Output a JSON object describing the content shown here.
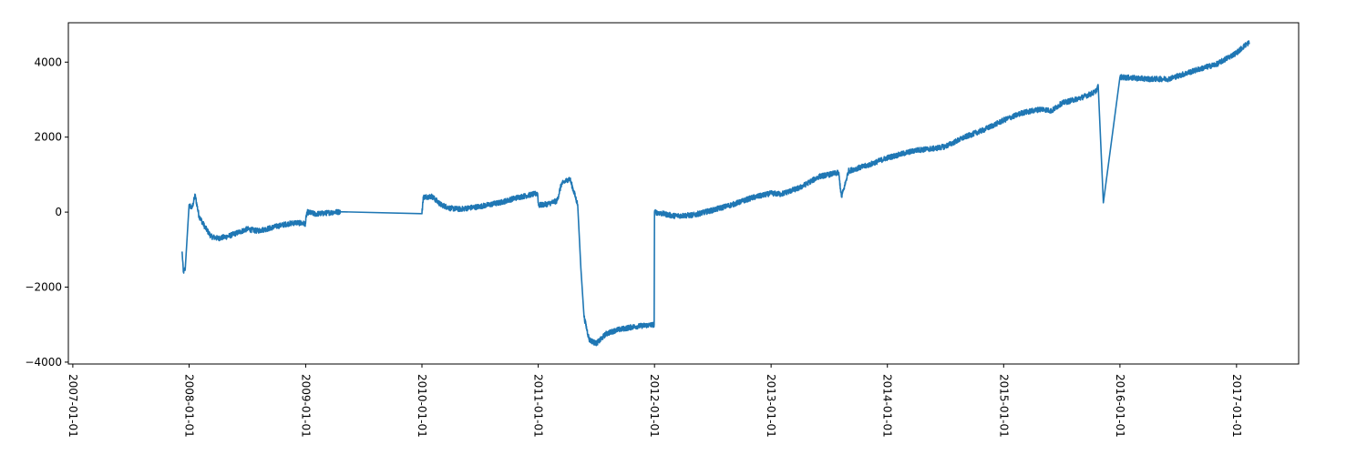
{
  "chart_data": {
    "type": "line",
    "title": "",
    "xlabel": "",
    "ylabel": "",
    "x_axis": {
      "kind": "date",
      "range": [
        "2006-12-18",
        "2017-07-15"
      ],
      "ticks": [
        "2007-01-01",
        "2008-01-01",
        "2009-01-01",
        "2010-01-01",
        "2011-01-01",
        "2012-01-01",
        "2013-01-01",
        "2014-01-01",
        "2015-01-01",
        "2016-01-01",
        "2017-01-01"
      ],
      "tick_labels": [
        "2007-01-01",
        "2008-01-01",
        "2009-01-01",
        "2010-01-01",
        "2011-01-01",
        "2012-01-01",
        "2013-01-01",
        "2014-01-01",
        "2015-01-01",
        "2016-01-01",
        "2017-01-01"
      ]
    },
    "y_axis": {
      "range": [
        -4050,
        5050
      ],
      "ticks": [
        -4000,
        -2000,
        0,
        2000,
        4000
      ],
      "tick_labels": [
        "−4000",
        "−2000",
        "0",
        "2000",
        "4000"
      ]
    },
    "grid": false,
    "legend": "none",
    "colors": {
      "line": "#1f77b4",
      "axes": "#000000",
      "background": "#ffffff"
    },
    "series": [
      {
        "color": "#1f77b4",
        "noise": 70,
        "points": [
          [
            "2007-12-10",
            -1050
          ],
          [
            "2007-12-14",
            -1600
          ],
          [
            "2007-12-20",
            -1500
          ],
          [
            "2008-01-01",
            200
          ],
          [
            "2008-01-10",
            100
          ],
          [
            "2008-01-20",
            450
          ],
          [
            "2008-02-01",
            -100
          ],
          [
            "2008-02-20",
            -400
          ],
          [
            "2008-03-10",
            -650
          ],
          [
            "2008-04-01",
            -700
          ],
          [
            "2008-05-01",
            -650
          ],
          [
            "2008-06-01",
            -550
          ],
          [
            "2008-07-01",
            -450
          ],
          [
            "2008-08-01",
            -500
          ],
          [
            "2008-09-01",
            -450
          ],
          [
            "2008-10-01",
            -380
          ],
          [
            "2008-11-01",
            -320
          ],
          [
            "2008-12-01",
            -280
          ],
          [
            "2008-12-31",
            -310
          ],
          [
            "2009-01-05",
            0
          ],
          [
            "2009-02-01",
            -50
          ],
          [
            "2009-03-01",
            -30
          ],
          [
            "2009-04-01",
            0
          ],
          [
            "2009-04-20",
            10
          ],
          [
            "2010-01-01",
            -40
          ],
          [
            "2010-01-05",
            400
          ],
          [
            "2010-02-01",
            420
          ],
          [
            "2010-03-01",
            200
          ],
          [
            "2010-04-01",
            100
          ],
          [
            "2010-05-01",
            80
          ],
          [
            "2010-07-01",
            150
          ],
          [
            "2010-09-01",
            250
          ],
          [
            "2010-11-01",
            400
          ],
          [
            "2010-12-30",
            500
          ],
          [
            "2011-01-02",
            180
          ],
          [
            "2011-02-01",
            220
          ],
          [
            "2011-03-01",
            300
          ],
          [
            "2011-03-15",
            750
          ],
          [
            "2011-04-01",
            850
          ],
          [
            "2011-04-10",
            900
          ],
          [
            "2011-05-05",
            200
          ],
          [
            "2011-05-15",
            -1500
          ],
          [
            "2011-05-25",
            -2800
          ],
          [
            "2011-06-10",
            -3400
          ],
          [
            "2011-07-01",
            -3500
          ],
          [
            "2011-07-10",
            -3450
          ],
          [
            "2011-08-01",
            -3250
          ],
          [
            "2011-09-01",
            -3150
          ],
          [
            "2011-10-01",
            -3100
          ],
          [
            "2011-11-01",
            -3050
          ],
          [
            "2011-12-31",
            -3000
          ],
          [
            "2012-01-01",
            0
          ],
          [
            "2012-02-01",
            -50
          ],
          [
            "2012-03-01",
            -100
          ],
          [
            "2012-05-01",
            -80
          ],
          [
            "2012-07-01",
            50
          ],
          [
            "2012-09-01",
            200
          ],
          [
            "2012-11-01",
            380
          ],
          [
            "2013-01-01",
            500
          ],
          [
            "2013-02-01",
            480
          ],
          [
            "2013-04-01",
            650
          ],
          [
            "2013-06-01",
            950
          ],
          [
            "2013-07-01",
            1000
          ],
          [
            "2013-08-01",
            1050
          ],
          [
            "2013-08-10",
            400
          ],
          [
            "2013-08-20",
            700
          ],
          [
            "2013-09-01",
            1100
          ],
          [
            "2013-11-01",
            1250
          ],
          [
            "2014-01-01",
            1450
          ],
          [
            "2014-04-01",
            1650
          ],
          [
            "2014-06-01",
            1700
          ],
          [
            "2014-07-01",
            1750
          ],
          [
            "2014-09-01",
            2000
          ],
          [
            "2014-11-01",
            2200
          ],
          [
            "2015-01-01",
            2450
          ],
          [
            "2015-03-01",
            2650
          ],
          [
            "2015-05-01",
            2750
          ],
          [
            "2015-06-01",
            2700
          ],
          [
            "2015-07-01",
            2900
          ],
          [
            "2015-09-01",
            3050
          ],
          [
            "2015-10-15",
            3200
          ],
          [
            "2015-10-25",
            3350
          ],
          [
            "2015-11-10",
            250
          ],
          [
            "2016-01-01",
            3600
          ],
          [
            "2016-04-01",
            3550
          ],
          [
            "2016-06-01",
            3550
          ],
          [
            "2016-09-01",
            3800
          ],
          [
            "2016-11-01",
            3950
          ],
          [
            "2017-01-01",
            4250
          ],
          [
            "2017-02-01",
            4480
          ],
          [
            "2017-02-10",
            4520
          ]
        ]
      }
    ]
  }
}
